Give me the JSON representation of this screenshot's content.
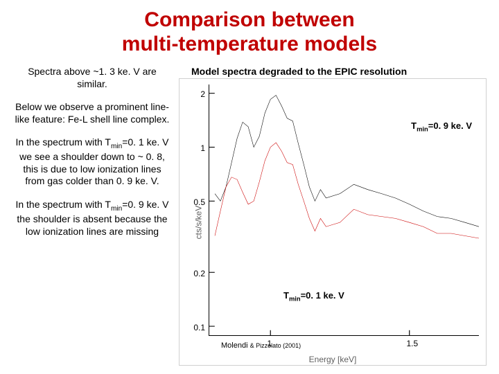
{
  "title_line1": "Comparison between",
  "title_line2": "multi-temperature models",
  "title_color": "#c00000",
  "title_fontsize": 30,
  "left": {
    "fontsize": 14,
    "p1": "Spectra above ~1. 3 ke. V are similar.",
    "p2": "Below we observe a prominent line-like feature: Fe-L shell line complex.",
    "p3": "In the spectrum with Tmin=0. 1 ke. V we see a shoulder down to ~ 0. 8, this is due to low ionization lines from gas colder than 0. 9 ke. V.",
    "p4": "In the spectrum with Tmin=0. 9 ke. V the shoulder is absent because the low ionization lines are missing"
  },
  "chart": {
    "title": "Model spectra degraded to the EPIC resolution",
    "title_fontsize": 14,
    "xlabel": "Energy   [keV]",
    "ylabel": "cts/s/keV",
    "xlim": [
      0.78,
      1.75
    ],
    "xticks": [
      1,
      1.5
    ],
    "xtick_labels": [
      "1",
      "1.5"
    ],
    "ylim_log": [
      -1.05,
      0.35
    ],
    "yticks_log": [
      -1.0,
      -0.699,
      -0.301,
      0.0,
      0.301
    ],
    "ytick_labels": [
      "0.1",
      "0.2",
      "0.5",
      "1",
      "2"
    ],
    "series": {
      "black": {
        "color": "#000000",
        "width": 1.6,
        "x": [
          0.8,
          0.82,
          0.84,
          0.86,
          0.88,
          0.9,
          0.92,
          0.94,
          0.96,
          0.98,
          1.0,
          1.02,
          1.04,
          1.06,
          1.08,
          1.1,
          1.12,
          1.14,
          1.16,
          1.18,
          1.2,
          1.25,
          1.3,
          1.35,
          1.4,
          1.45,
          1.5,
          1.55,
          1.6,
          1.65,
          1.7,
          1.75
        ],
        "y": [
          0.55,
          0.5,
          0.6,
          0.82,
          1.12,
          1.38,
          1.3,
          1.0,
          1.15,
          1.55,
          1.85,
          1.95,
          1.7,
          1.45,
          1.4,
          1.05,
          0.8,
          0.6,
          0.5,
          0.58,
          0.52,
          0.55,
          0.62,
          0.58,
          0.55,
          0.52,
          0.48,
          0.44,
          0.41,
          0.4,
          0.38,
          0.36
        ]
      },
      "red": {
        "color": "#cc0000",
        "width": 1.6,
        "x": [
          0.8,
          0.82,
          0.84,
          0.86,
          0.88,
          0.9,
          0.92,
          0.94,
          0.96,
          0.98,
          1.0,
          1.02,
          1.04,
          1.06,
          1.08,
          1.1,
          1.12,
          1.14,
          1.16,
          1.18,
          1.2,
          1.25,
          1.3,
          1.35,
          1.4,
          1.45,
          1.5,
          1.55,
          1.6,
          1.65,
          1.7,
          1.75
        ],
        "y": [
          0.32,
          0.44,
          0.6,
          0.68,
          0.66,
          0.56,
          0.48,
          0.5,
          0.64,
          0.84,
          1.0,
          1.06,
          0.95,
          0.82,
          0.8,
          0.62,
          0.5,
          0.4,
          0.34,
          0.4,
          0.36,
          0.38,
          0.45,
          0.42,
          0.41,
          0.4,
          0.38,
          0.36,
          0.33,
          0.33,
          0.32,
          0.31
        ]
      }
    },
    "annot_black": {
      "pre": "T",
      "sub": "min",
      "post": "=0. 9 ke. V",
      "fontsize": 13
    },
    "annot_red": {
      "pre": "T",
      "sub": "min",
      "post": "=0. 1 ke. V",
      "fontsize": 13
    },
    "citation": {
      "a": "Molendi ",
      "b": "& Pizzolato (2001)",
      "fontsize_a": 11,
      "fontsize_b": 9
    }
  }
}
